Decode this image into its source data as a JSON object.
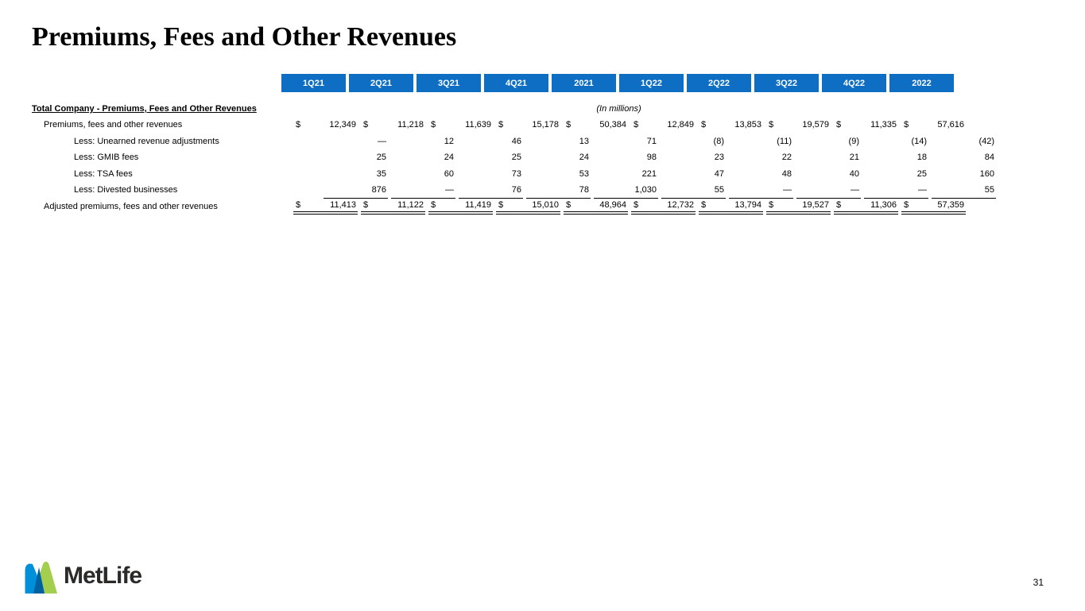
{
  "title": "Premiums, Fees and Other Revenues",
  "page_number": "31",
  "logo": {
    "text": "MetLife"
  },
  "colors": {
    "header_blue": "#0d6ec4",
    "logo_light_blue": "#0090DA",
    "logo_dark_blue": "#0061A0",
    "logo_green": "#A4CE4E",
    "logo_text": "#2b2a28"
  },
  "table": {
    "section_label": "Total Company - Premiums, Fees and Other Revenues",
    "units_note": "(In millions)",
    "columns": [
      "1Q21",
      "2Q21",
      "3Q21",
      "4Q21",
      "2021",
      "1Q22",
      "2Q22",
      "3Q22",
      "4Q22",
      "2022"
    ],
    "rows": [
      {
        "label": "Premiums, fees and other revenues",
        "indent": 1,
        "dollar": true,
        "underline": "none",
        "values": [
          "12,349",
          "11,218",
          "11,639",
          "15,178",
          "50,384",
          "12,849",
          "13,853",
          "19,579",
          "11,335",
          "57,616"
        ]
      },
      {
        "label": "Less: Unearned revenue adjustments",
        "indent": 2,
        "dollar": false,
        "underline": "none",
        "values": [
          "—",
          "12",
          "46",
          "13",
          "71",
          "(8)",
          "(11)",
          "(9)",
          "(14)",
          "(42)"
        ]
      },
      {
        "label": "Less: GMIB fees",
        "indent": 2,
        "dollar": false,
        "underline": "none",
        "values": [
          "25",
          "24",
          "25",
          "24",
          "98",
          "23",
          "22",
          "21",
          "18",
          "84"
        ]
      },
      {
        "label": "Less: TSA fees",
        "indent": 2,
        "dollar": false,
        "underline": "none",
        "values": [
          "35",
          "60",
          "73",
          "53",
          "221",
          "47",
          "48",
          "40",
          "25",
          "160"
        ]
      },
      {
        "label": "Less: Divested businesses",
        "indent": 2,
        "dollar": false,
        "underline": "single",
        "values": [
          "876",
          "—",
          "76",
          "78",
          "1,030",
          "55",
          "—",
          "—",
          "—",
          "55"
        ]
      },
      {
        "label": "Adjusted premiums, fees and other revenues",
        "indent": 1,
        "dollar": true,
        "underline": "double",
        "values": [
          "11,413",
          "11,122",
          "11,419",
          "15,010",
          "48,964",
          "12,732",
          "13,794",
          "19,527",
          "11,306",
          "57,359"
        ]
      }
    ]
  }
}
